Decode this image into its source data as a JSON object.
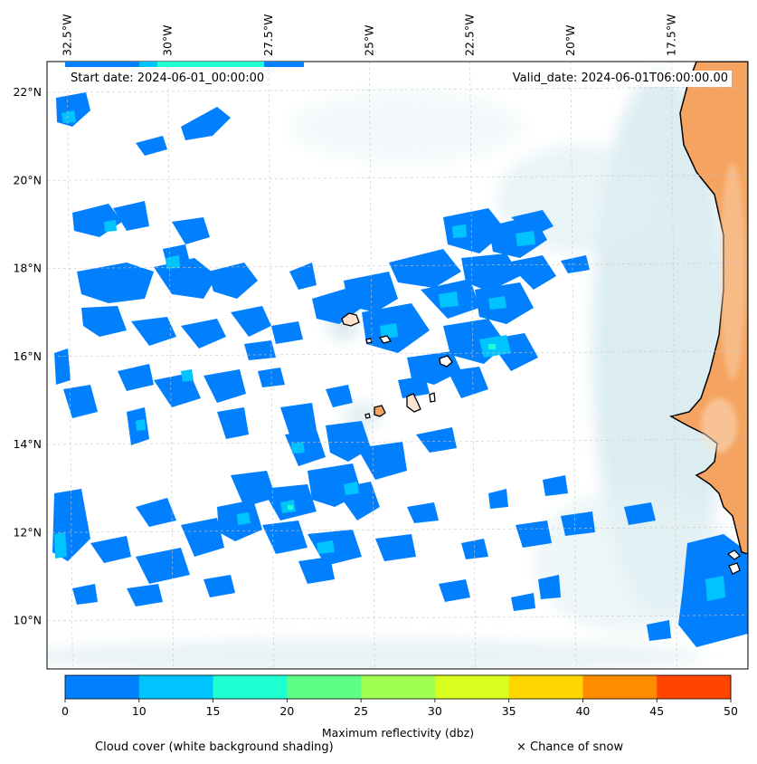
{
  "header": {
    "start_date": "Start date: 2024-06-01_00:00:00",
    "valid_date": "Valid_date: 2024-06-01T06:00:00.00"
  },
  "map": {
    "lon_range": [
      -33.0,
      -15.6
    ],
    "lat_range": [
      8.9,
      22.7
    ],
    "lon_labels": [
      {
        "lon": -32.5,
        "text": "32.5°W"
      },
      {
        "lon": -30.0,
        "text": "30°W"
      },
      {
        "lon": -27.5,
        "text": "27.5°W"
      },
      {
        "lon": -25.0,
        "text": "25°W"
      },
      {
        "lon": -22.5,
        "text": "22.5°W"
      },
      {
        "lon": -20.0,
        "text": "20°W"
      },
      {
        "lon": -17.5,
        "text": "17.5°W"
      }
    ],
    "lat_labels": [
      {
        "lat": 22,
        "text": "22°N"
      },
      {
        "lat": 20,
        "text": "20°N"
      },
      {
        "lat": 18,
        "text": "18°N"
      },
      {
        "lat": 16,
        "text": "16°N"
      },
      {
        "lat": 14,
        "text": "14°N"
      },
      {
        "lat": 12,
        "text": "12°N"
      },
      {
        "lat": 10,
        "text": "10°N"
      }
    ],
    "gridlines": true,
    "land_color": "#f4a460",
    "ocean_color": "#ffffff",
    "coastline_color": "#000000"
  },
  "legend": {
    "ticks": [
      "0",
      "10",
      "15",
      "20",
      "25",
      "30",
      "35",
      "40",
      "45",
      "50"
    ],
    "colors": [
      "#0080ff",
      "#00c4ff",
      "#1effd2",
      "#5fff87",
      "#9fff53",
      "#d9ff20",
      "#ffd700",
      "#ff8c00",
      "#ff4500"
    ],
    "label": "Maximum reflectivity (dbz)"
  },
  "footer": {
    "cloud_cover": "Cloud cover (white background shading)",
    "snow": "× Chance of snow"
  }
}
